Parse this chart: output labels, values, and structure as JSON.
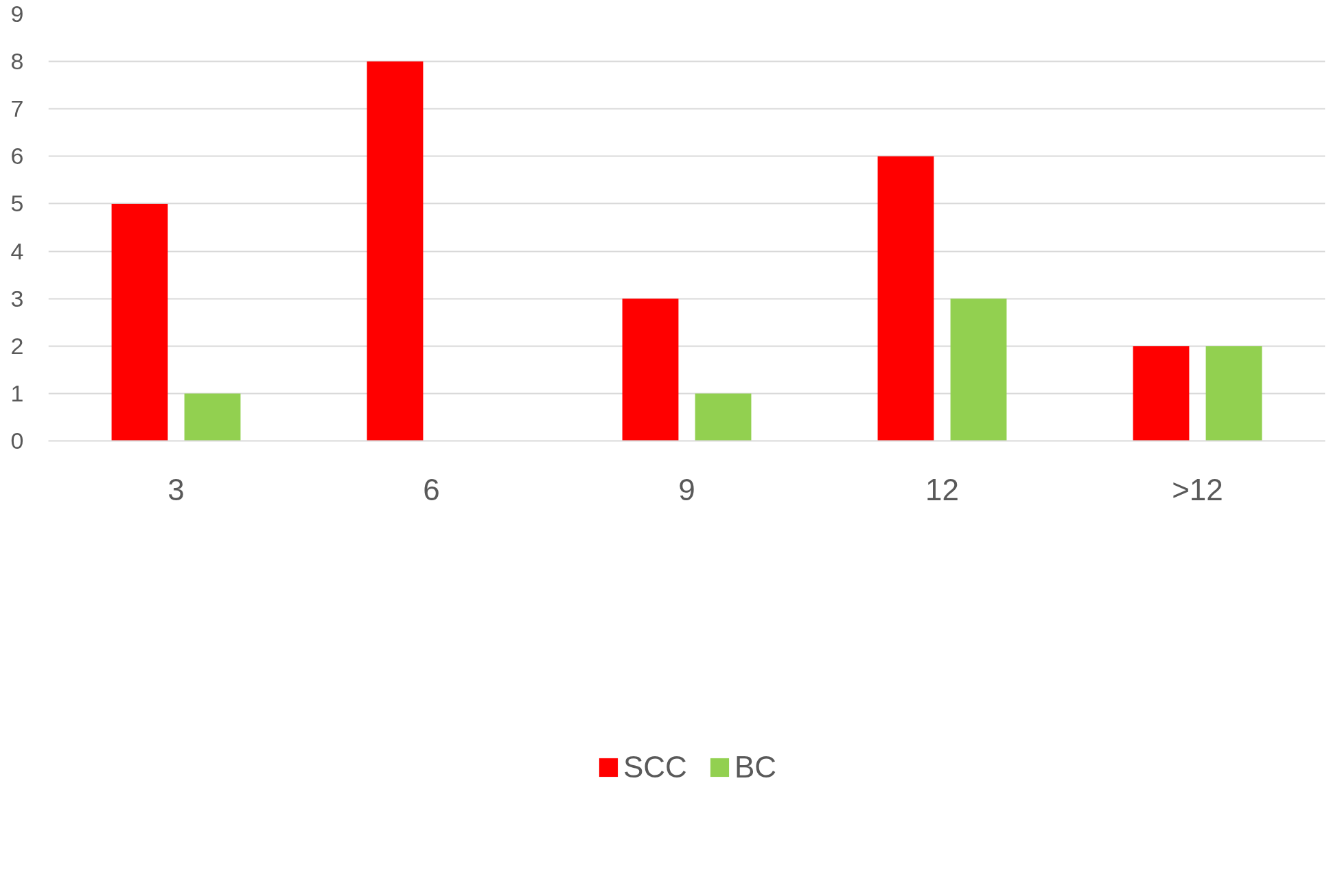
{
  "chart_data": {
    "type": "bar",
    "categories": [
      "3",
      "6",
      "9",
      "12",
      ">12"
    ],
    "series": [
      {
        "name": "SCC",
        "color": "#ff0000",
        "values": [
          5,
          8,
          3,
          6,
          2
        ]
      },
      {
        "name": "BC",
        "color": "#92d050",
        "values": [
          1,
          0,
          1,
          3,
          2
        ]
      }
    ],
    "ylim": [
      0,
      9
    ],
    "yticks": [
      0,
      1,
      2,
      3,
      4,
      5,
      6,
      7,
      8,
      9
    ],
    "grid": "y",
    "legend": "bottom"
  }
}
